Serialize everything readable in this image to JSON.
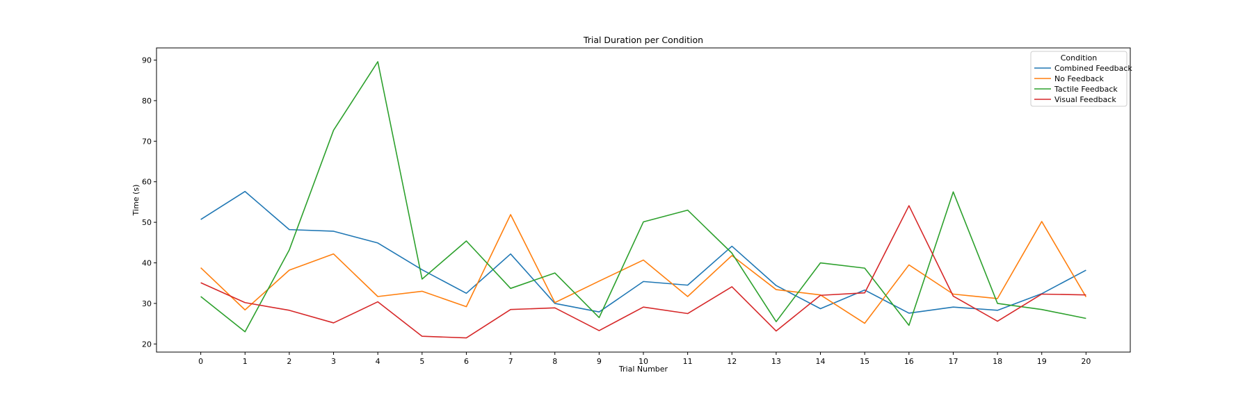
{
  "chart_data": {
    "type": "line",
    "title": "Trial Duration per Condition",
    "xlabel": "Trial Number",
    "ylabel": "Time (s)",
    "x": [
      0,
      1,
      2,
      3,
      4,
      5,
      6,
      7,
      8,
      9,
      10,
      11,
      12,
      13,
      14,
      15,
      16,
      17,
      18,
      19,
      20
    ],
    "xlim": [
      -1,
      21
    ],
    "ylim": [
      18,
      93
    ],
    "yticks": [
      20,
      30,
      40,
      50,
      60,
      70,
      80,
      90
    ],
    "grid": false,
    "legend": {
      "title": "Condition",
      "placement": "top-right"
    },
    "series": [
      {
        "name": "Combined Feedback",
        "color": "#1f77b4",
        "values": [
          50.7,
          57.6,
          48.2,
          47.8,
          44.9,
          38.3,
          32.5,
          42.2,
          30.0,
          27.9,
          35.4,
          34.5,
          44.1,
          34.4,
          28.7,
          33.3,
          27.6,
          29.1,
          28.3,
          32.4,
          38.2
        ]
      },
      {
        "name": "No Feedback",
        "color": "#ff7f0e",
        "values": [
          38.8,
          28.4,
          38.2,
          42.2,
          31.7,
          33.0,
          29.2,
          51.9,
          30.2,
          35.5,
          40.7,
          31.7,
          41.8,
          33.4,
          32.1,
          25.1,
          39.5,
          32.3,
          31.2,
          50.2,
          31.6
        ]
      },
      {
        "name": "Tactile Feedback",
        "color": "#2ca02c",
        "values": [
          31.7,
          23.0,
          43.2,
          72.7,
          89.6,
          36.0,
          45.4,
          33.7,
          37.5,
          26.5,
          50.1,
          53.0,
          42.4,
          25.5,
          40.0,
          38.7,
          24.6,
          57.5,
          30.0,
          28.5,
          26.3
        ]
      },
      {
        "name": "Visual Feedback",
        "color": "#d62728",
        "values": [
          35.1,
          30.2,
          28.3,
          25.2,
          30.4,
          21.9,
          21.5,
          28.5,
          28.9,
          23.3,
          29.1,
          27.5,
          34.1,
          23.2,
          32.0,
          32.6,
          54.1,
          31.8,
          25.6,
          32.3,
          32.1
        ]
      }
    ]
  }
}
